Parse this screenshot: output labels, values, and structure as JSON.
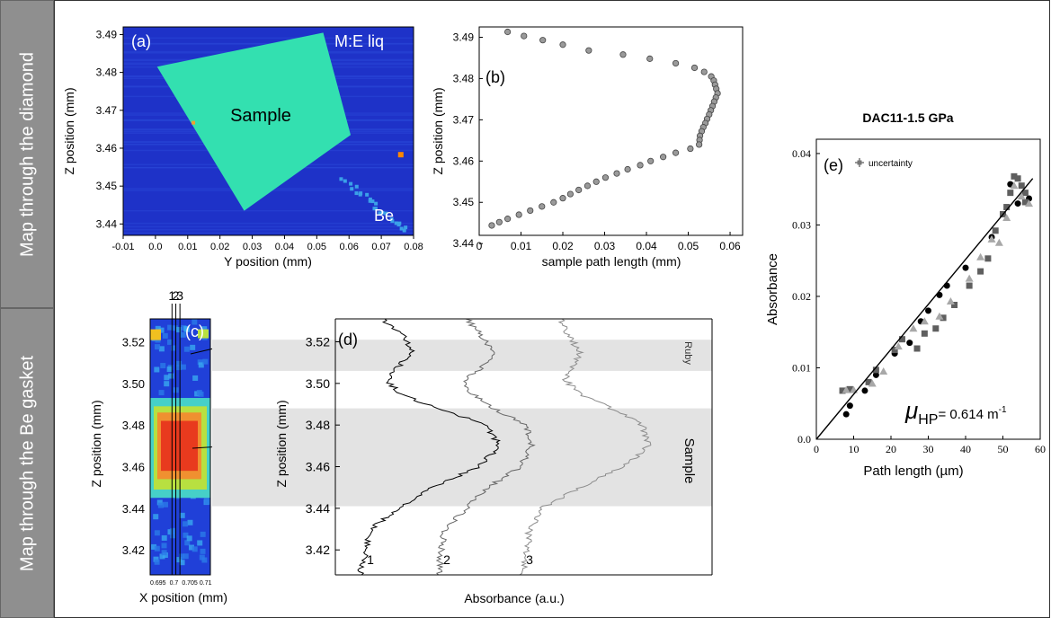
{
  "side_labels": {
    "top": "Map through the diamond",
    "bottom": "Map through the Be gasket"
  },
  "colors": {
    "map_bg": "#1e32c8",
    "sample_fill": "#33e0b0",
    "hot": "#e83a1e",
    "band": "#e3e3e3",
    "fit_line": "#000000",
    "gray_dark": "#5f5f5f",
    "gray_light": "#a8a8a8"
  },
  "chart_data": [
    {
      "id": "a",
      "type": "heatmap",
      "panel_label": "(a)",
      "xlabel": "Y position (mm)",
      "ylabel": "Z position (mm)",
      "xlim": [
        -0.01,
        0.08
      ],
      "ylim": [
        3.437,
        3.492
      ],
      "xticks": [
        "-0.01",
        "0.0",
        "0.01",
        "0.02",
        "0.03",
        "0.04",
        "0.05",
        "0.06",
        "0.07",
        "0.08"
      ],
      "yticks": [
        "3.44",
        "3.45",
        "3.46",
        "3.47",
        "3.48",
        "3.49"
      ],
      "annotations": {
        "top_right": "M:E liq",
        "center": "Sample",
        "bottom_right": "Be"
      },
      "sample_outline": [
        [
          0.0005,
          3.4815
        ],
        [
          0.052,
          3.4905
        ],
        [
          0.0605,
          3.4635
        ],
        [
          0.0275,
          3.4435
        ]
      ]
    },
    {
      "id": "b",
      "type": "scatter",
      "panel_label": "(b)",
      "xlabel": "sample path length (mm)",
      "ylabel": "Z position (mm)",
      "xlim": [
        0,
        0.063
      ],
      "ylim": [
        3.442,
        3.4925
      ],
      "xticks": [
        "0",
        "0.01",
        "0.02",
        "0.03",
        "0.04",
        "0.05",
        "0.06"
      ],
      "yticks": [
        "3.44",
        "3.45",
        "3.46",
        "3.47",
        "3.48",
        "3.49"
      ],
      "x": [
        0.0068,
        0.0107,
        0.0152,
        0.02,
        0.0262,
        0.0344,
        0.0408,
        0.047,
        0.0515,
        0.0538,
        0.0555,
        0.0561,
        0.0564,
        0.0567,
        0.057,
        0.0566,
        0.0562,
        0.0558,
        0.0554,
        0.055,
        0.0545,
        0.0541,
        0.0536,
        0.0532,
        0.0528,
        0.0527,
        0.0526,
        0.0505,
        0.047,
        0.044,
        0.041,
        0.0385,
        0.0355,
        0.0329,
        0.0302,
        0.028,
        0.0259,
        0.0238,
        0.0218,
        0.02,
        0.0178,
        0.015,
        0.0122,
        0.0095,
        0.0068,
        0.0048,
        0.003
      ],
      "y": [
        3.4913,
        3.4903,
        3.4893,
        3.4882,
        3.4868,
        3.4858,
        3.4848,
        3.4837,
        3.4826,
        3.4816,
        3.4805,
        3.4795,
        3.4785,
        3.4775,
        3.4764,
        3.4754,
        3.4744,
        3.4733,
        3.4723,
        3.4713,
        3.4702,
        3.4692,
        3.4682,
        3.4672,
        3.4661,
        3.4651,
        3.464,
        3.463,
        3.462,
        3.461,
        3.46,
        3.459,
        3.458,
        3.457,
        3.456,
        3.455,
        3.454,
        3.453,
        3.452,
        3.451,
        3.45,
        3.449,
        3.448,
        3.447,
        3.446,
        3.4452,
        3.4444
      ]
    },
    {
      "id": "c",
      "type": "heatmap",
      "panel_label": "(c)",
      "xlabel": "X position (mm)",
      "ylabel": "Z position (mm)",
      "xlim": [
        0.6925,
        0.7115
      ],
      "ylim": [
        3.408,
        3.531
      ],
      "xticks": [
        "0.695",
        "0.7",
        "0.705",
        "0.71"
      ],
      "yticks": [
        "3.42",
        "3.44",
        "3.46",
        "3.48",
        "3.50",
        "3.52"
      ],
      "line_labels": [
        "1",
        "2",
        "3"
      ],
      "annotations": {
        "ruby": "Ruby",
        "sample": "Sample"
      }
    },
    {
      "id": "d",
      "type": "line",
      "panel_label": "(d)",
      "xlabel": "Absorbance (a.u.)",
      "ylabel": "Z position (mm)",
      "ylim": [
        3.408,
        3.531
      ],
      "yticks": [
        "3.42",
        "3.44",
        "3.46",
        "3.48",
        "3.50",
        "3.52"
      ],
      "bands": [
        {
          "label": "Ruby",
          "ymin": 3.506,
          "ymax": 3.521
        },
        {
          "label": "Sample",
          "ymin": 3.441,
          "ymax": 3.488
        }
      ],
      "series": [
        {
          "name": "1",
          "z": [
            3.41,
            3.42,
            3.43,
            3.44,
            3.45,
            3.46,
            3.47,
            3.48,
            3.488,
            3.495,
            3.502,
            3.508,
            3.515,
            3.522,
            3.53
          ],
          "absorbance": [
            0.02,
            0.06,
            0.1,
            0.3,
            0.55,
            0.9,
            1.05,
            0.95,
            0.6,
            0.3,
            0.22,
            0.3,
            0.4,
            0.35,
            0.2
          ]
        },
        {
          "name": "2",
          "z": [
            3.41,
            3.42,
            3.43,
            3.44,
            3.45,
            3.46,
            3.47,
            3.48,
            3.488,
            3.495,
            3.502,
            3.508,
            3.515,
            3.522,
            3.53
          ],
          "absorbance": [
            0.05,
            0.06,
            0.1,
            0.3,
            0.5,
            0.8,
            0.9,
            0.85,
            0.55,
            0.35,
            0.28,
            0.45,
            0.55,
            0.45,
            0.32
          ]
        },
        {
          "name": "3",
          "z": [
            3.41,
            3.42,
            3.43,
            3.44,
            3.45,
            3.46,
            3.47,
            3.48,
            3.488,
            3.495,
            3.502,
            3.508,
            3.515,
            3.522,
            3.53
          ],
          "absorbance": [
            0.05,
            0.08,
            0.1,
            0.2,
            0.5,
            0.85,
            1.05,
            1.0,
            0.75,
            0.5,
            0.38,
            0.45,
            0.5,
            0.42,
            0.35
          ]
        }
      ]
    },
    {
      "id": "e",
      "type": "scatter",
      "panel_label": "(e)",
      "title": "DAC11-1.5 GPa",
      "legend": "uncertainty",
      "xlabel": "Path length (µm)",
      "ylabel": "Absorbance",
      "xlim": [
        0,
        60
      ],
      "ylim": [
        0,
        0.042
      ],
      "xticks": [
        "0",
        "10",
        "20",
        "30",
        "40",
        "50",
        "60"
      ],
      "yticks": [
        "0.0",
        "0.01",
        "0.02",
        "0.03",
        "0.04"
      ],
      "annotation": {
        "symbol": "μ",
        "subscript": "HP",
        "text": "= 0.614 m",
        "superscript": "-1"
      },
      "fit": {
        "x": [
          0,
          58
        ],
        "y": [
          0,
          0.0365
        ]
      },
      "series": [
        {
          "marker": "circle",
          "x": [
            8,
            9,
            13,
            16,
            21,
            25,
            28,
            30,
            33,
            35,
            40,
            47,
            52,
            54,
            57
          ],
          "y": [
            0.0035,
            0.0047,
            0.0068,
            0.009,
            0.012,
            0.0135,
            0.0165,
            0.018,
            0.0202,
            0.0215,
            0.024,
            0.0283,
            0.0357,
            0.033,
            0.0337
          ]
        },
        {
          "marker": "square",
          "x": [
            7,
            9,
            14,
            16,
            21,
            23,
            27,
            29,
            32,
            34,
            37,
            41,
            44,
            46,
            48,
            50,
            51,
            52,
            53,
            54,
            55,
            56,
            56
          ],
          "y": [
            0.0068,
            0.007,
            0.008,
            0.0097,
            0.0125,
            0.014,
            0.0127,
            0.0148,
            0.0155,
            0.017,
            0.0188,
            0.0215,
            0.0235,
            0.0253,
            0.0292,
            0.0315,
            0.0325,
            0.0345,
            0.0368,
            0.0365,
            0.0355,
            0.0345,
            0.0332
          ]
        },
        {
          "marker": "triangle",
          "x": [
            8,
            10,
            15,
            18,
            22,
            26,
            29,
            33,
            36,
            41,
            44,
            47,
            49,
            51,
            53,
            55,
            57
          ],
          "y": [
            0.0069,
            0.0069,
            0.0078,
            0.0095,
            0.013,
            0.0155,
            0.0165,
            0.0172,
            0.0193,
            0.0225,
            0.0255,
            0.028,
            0.0275,
            0.031,
            0.0355,
            0.034,
            0.033
          ]
        }
      ]
    }
  ]
}
